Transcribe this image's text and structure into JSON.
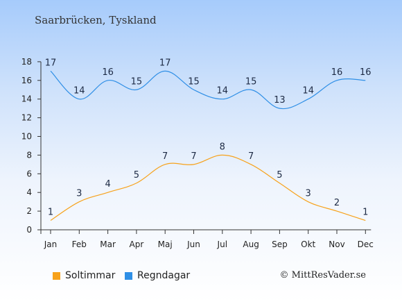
{
  "page": {
    "location": "Saarbrücken, Tyskland",
    "credit": "© MittResVader.se"
  },
  "chart_data": {
    "type": "line",
    "categories": [
      "Jan",
      "Feb",
      "Mar",
      "Apr",
      "Maj",
      "Jun",
      "Jul",
      "Aug",
      "Sep",
      "Okt",
      "Nov",
      "Dec"
    ],
    "ylim": [
      0,
      18
    ],
    "yticks": [
      0,
      2,
      4,
      6,
      8,
      10,
      12,
      14,
      16,
      18
    ],
    "grid": false,
    "legend_position": "bottom-left",
    "series": [
      {
        "name": "Soltimmar",
        "color": "#f7a21b",
        "values": [
          1,
          3,
          4,
          5,
          7,
          7,
          8,
          7,
          5,
          3,
          2,
          1
        ]
      },
      {
        "name": "Regndagar",
        "color": "#2f8fe6",
        "values": [
          17,
          14,
          16,
          15,
          17,
          15,
          14,
          15,
          13,
          14,
          16,
          16
        ]
      }
    ]
  }
}
